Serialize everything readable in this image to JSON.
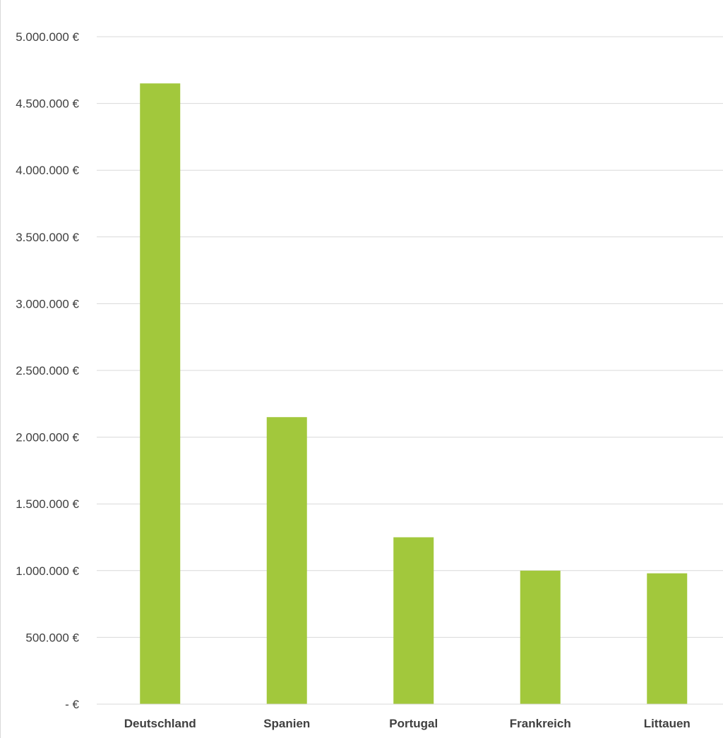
{
  "chart_data": {
    "type": "bar",
    "title": "",
    "xlabel": "",
    "ylabel": "",
    "categories": [
      "Deutschland",
      "Spanien",
      "Portugal",
      "Frankreich",
      "Littauen"
    ],
    "values": [
      4650000,
      2150000,
      1250000,
      1000000,
      980000
    ],
    "ylim": [
      0,
      5000000
    ],
    "yticks": [
      0,
      500000,
      1000000,
      1500000,
      2000000,
      2500000,
      3000000,
      3500000,
      4000000,
      4500000,
      5000000
    ],
    "ytick_labels": [
      "- €",
      "500.000 €",
      "1.000.000 €",
      "1.500.000 €",
      "2.000.000 €",
      "2.500.000 €",
      "3.000.000 €",
      "3.500.000 €",
      "4.000.000 €",
      "4.500.000 €",
      "5.000.000 €"
    ],
    "grid": true,
    "legend": "none",
    "colors": {
      "bar": "#a2c83c",
      "grid": "#d9d9d9",
      "axis": "#d9d9d9",
      "text": "#404040"
    }
  }
}
